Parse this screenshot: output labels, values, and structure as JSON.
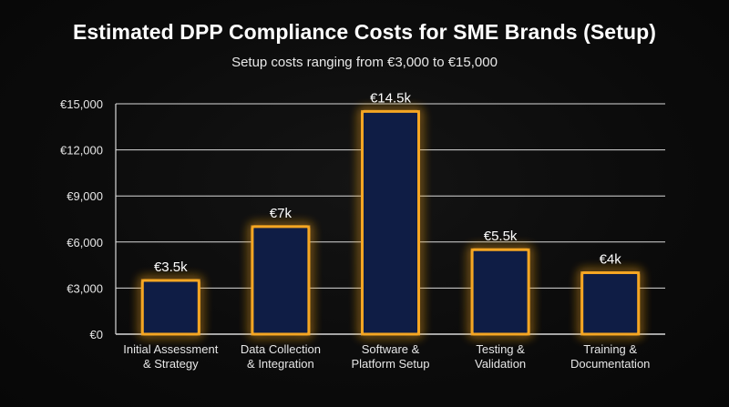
{
  "chart_data": {
    "type": "bar",
    "title": "Estimated DPP Compliance Costs for SME Brands (Setup)",
    "subtitle": "Setup costs ranging from €3,000 to €15,000",
    "categories": [
      [
        "Initial Assessment",
        "& Strategy"
      ],
      [
        "Data Collection",
        "& Integration"
      ],
      [
        "Software &",
        "Platform Setup"
      ],
      [
        "Testing &",
        "Validation"
      ],
      [
        "Training &",
        "Documentation"
      ]
    ],
    "values": [
      3500,
      7000,
      14500,
      5500,
      4000
    ],
    "data_labels": [
      "€3.5k",
      "€7k",
      "€14.5k",
      "€5.5k",
      "€4k"
    ],
    "ylim": [
      0,
      15000
    ],
    "yticks": [
      0,
      3000,
      6000,
      9000,
      12000,
      15000
    ],
    "ytick_labels": [
      "€0",
      "€3,000",
      "€6,000",
      "€9,000",
      "€12,000",
      "€15,000"
    ],
    "xlabel": "",
    "ylabel": "",
    "grid": true,
    "legend": "none",
    "colors": {
      "bar_fill": "#0f1d45",
      "bar_stroke": "#f5a623",
      "glow": "#f5a623",
      "grid": "#d9d9d9",
      "text": "#ffffff"
    }
  }
}
